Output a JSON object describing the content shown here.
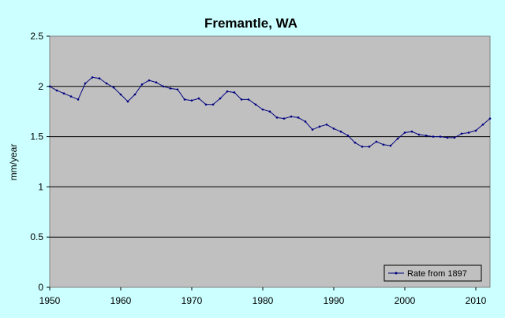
{
  "chart_data": {
    "type": "line",
    "title": "Fremantle, WA",
    "xlabel": "",
    "ylabel": "mm/year",
    "xlim": [
      1950,
      2012
    ],
    "ylim": [
      0,
      2.5
    ],
    "x_ticks": [
      "1950",
      "1960",
      "1970",
      "1980",
      "1990",
      "2000",
      "2010"
    ],
    "y_ticks": [
      "0",
      "0.5",
      "1",
      "1.5",
      "2",
      "2.5"
    ],
    "grid": "horizontal",
    "legend_position": "bottom-right",
    "colors": {
      "background": "#ccffff",
      "plot_area": "#c0c0c0",
      "series": "#000080"
    },
    "series": [
      {
        "name": "Rate from 1897",
        "x": [
          1950,
          1951,
          1952,
          1953,
          1954,
          1955,
          1956,
          1957,
          1958,
          1959,
          1960,
          1961,
          1962,
          1963,
          1964,
          1965,
          1966,
          1967,
          1968,
          1969,
          1970,
          1971,
          1972,
          1973,
          1974,
          1975,
          1976,
          1977,
          1978,
          1979,
          1980,
          1981,
          1982,
          1983,
          1984,
          1985,
          1986,
          1987,
          1988,
          1989,
          1990,
          1991,
          1992,
          1993,
          1994,
          1995,
          1996,
          1997,
          1998,
          1999,
          2000,
          2001,
          2002,
          2003,
          2004,
          2005,
          2006,
          2007,
          2008,
          2009,
          2010,
          2011,
          2012
        ],
        "values": [
          2.0,
          1.96,
          1.93,
          1.9,
          1.87,
          2.03,
          2.09,
          2.08,
          2.03,
          1.99,
          1.92,
          1.85,
          1.92,
          2.02,
          2.06,
          2.04,
          2.0,
          1.98,
          1.97,
          1.87,
          1.86,
          1.88,
          1.82,
          1.82,
          1.88,
          1.95,
          1.94,
          1.87,
          1.87,
          1.82,
          1.77,
          1.75,
          1.69,
          1.68,
          1.7,
          1.69,
          1.65,
          1.57,
          1.6,
          1.62,
          1.58,
          1.55,
          1.51,
          1.44,
          1.4,
          1.4,
          1.45,
          1.42,
          1.41,
          1.48,
          1.54,
          1.55,
          1.52,
          1.51,
          1.5,
          1.5,
          1.49,
          1.49,
          1.53,
          1.54,
          1.56,
          1.62,
          1.68
        ]
      }
    ]
  }
}
